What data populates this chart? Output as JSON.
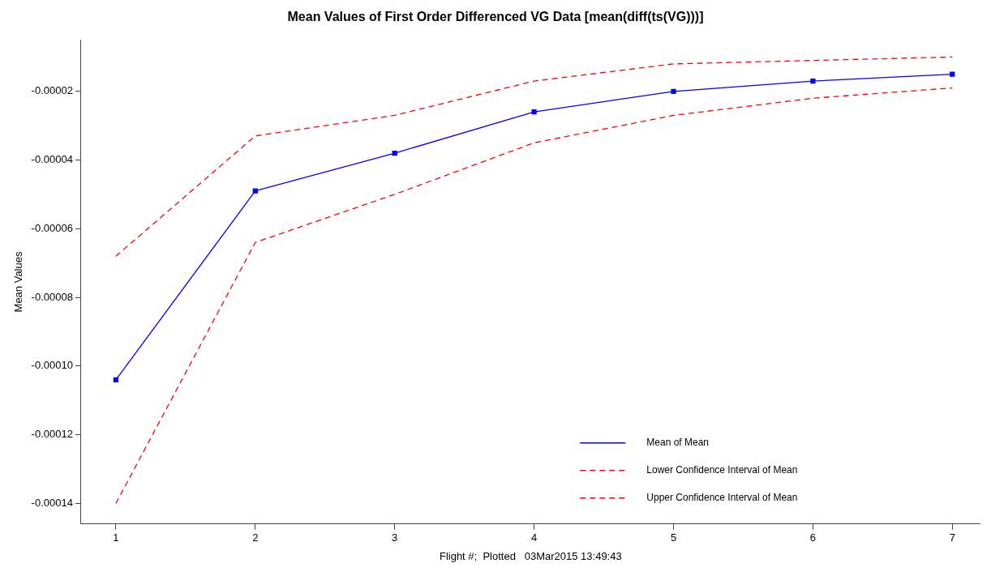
{
  "chart_data": {
    "type": "line",
    "title": "Mean Values of First Order Differenced VG Data [mean(diff(ts(VG)))]",
    "xlabel": "Flight #;  Plotted   03Mar2015 13:49:43",
    "ylabel": "Mean Values",
    "x": [
      1,
      2,
      3,
      4,
      5,
      6,
      7
    ],
    "xlim": [
      0.75,
      7.2
    ],
    "xticks": [
      1,
      2,
      3,
      4,
      5,
      6,
      7
    ],
    "ylim": [
      -0.000146,
      -5e-06
    ],
    "yticks": [
      {
        "value": -0.00014,
        "label": "-0.00014"
      },
      {
        "value": -0.00012,
        "label": "-0.00012"
      },
      {
        "value": -0.0001,
        "label": "-0.00010"
      },
      {
        "value": -8e-05,
        "label": "-0.00008"
      },
      {
        "value": -6e-05,
        "label": "-0.00006"
      },
      {
        "value": -4e-05,
        "label": "-0.00004"
      },
      {
        "value": -2e-05,
        "label": "-0.00002"
      }
    ],
    "grid": false,
    "legend": "bottom right",
    "series": [
      {
        "name": "Mean of Mean",
        "color": "#0000ff",
        "marker": "square",
        "line_style": "solid",
        "values": [
          -0.000104,
          -4.9e-05,
          -3.8e-05,
          -2.6e-05,
          -2e-05,
          -1.7e-05,
          -1.5e-05
        ]
      },
      {
        "name": "Lower Confidence Interval of Mean",
        "color": "#ff0000",
        "marker": "none",
        "line_style": "dashed",
        "values": [
          -0.00014,
          -6.4e-05,
          -5e-05,
          -3.5e-05,
          -2.7e-05,
          -2.2e-05,
          -1.9e-05
        ]
      },
      {
        "name": "Upper Confidence Interval of Mean",
        "color": "#ff0000",
        "marker": "none",
        "line_style": "dashed",
        "values": [
          -6.8e-05,
          -3.3e-05,
          -2.7e-05,
          -1.7e-05,
          -1.2e-05,
          -1.1e-05,
          -1e-05
        ]
      }
    ]
  }
}
